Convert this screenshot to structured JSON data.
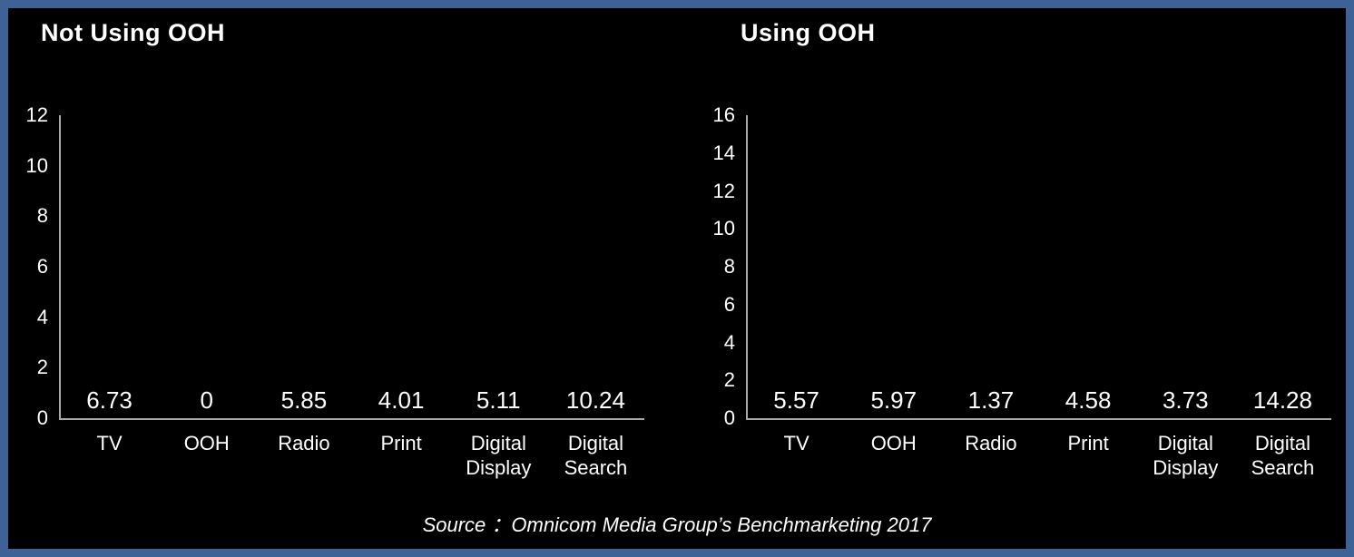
{
  "source_note": "Source ：Omnicom Media Group’s Benchmarketing 2017",
  "colors": {
    "background": "#000000",
    "frame_border": "#3D6297",
    "axis_line": "#A9A9A9",
    "text": "#FFFFFF",
    "teal_bar": "#69A0A6",
    "gold_bar": "#AE8500"
  },
  "chart_data": [
    {
      "type": "bar",
      "title": "Not Using OOH",
      "categories": [
        "TV",
        "OOH",
        "Radio",
        "Print",
        "Digital Display",
        "Digital Search"
      ],
      "values": [
        6.73,
        0,
        5.85,
        4.01,
        5.11,
        10.24
      ],
      "data_labels": [
        "6.73",
        "0",
        "5.85",
        "4.01",
        "5.11",
        "10.24"
      ],
      "ylim": [
        0,
        12
      ],
      "yticks": [
        0,
        2,
        4,
        6,
        8,
        10,
        12
      ],
      "bar_color": "#69A0A6",
      "grid": false,
      "legend": "none",
      "xlabel": "",
      "ylabel": ""
    },
    {
      "type": "bar",
      "title": "Using OOH",
      "categories": [
        "TV",
        "OOH",
        "Radio",
        "Print",
        "Digital Display",
        "Digital Search"
      ],
      "values": [
        5.57,
        5.97,
        1.37,
        4.58,
        3.73,
        14.28
      ],
      "data_labels": [
        "5.57",
        "5.97",
        "1.37",
        "4.58",
        "3.73",
        "14.28"
      ],
      "ylim": [
        0,
        16
      ],
      "yticks": [
        0,
        2,
        4,
        6,
        8,
        10,
        12,
        14,
        16
      ],
      "bar_color": "#AE8500",
      "grid": false,
      "legend": "none",
      "xlabel": "",
      "ylabel": ""
    }
  ]
}
